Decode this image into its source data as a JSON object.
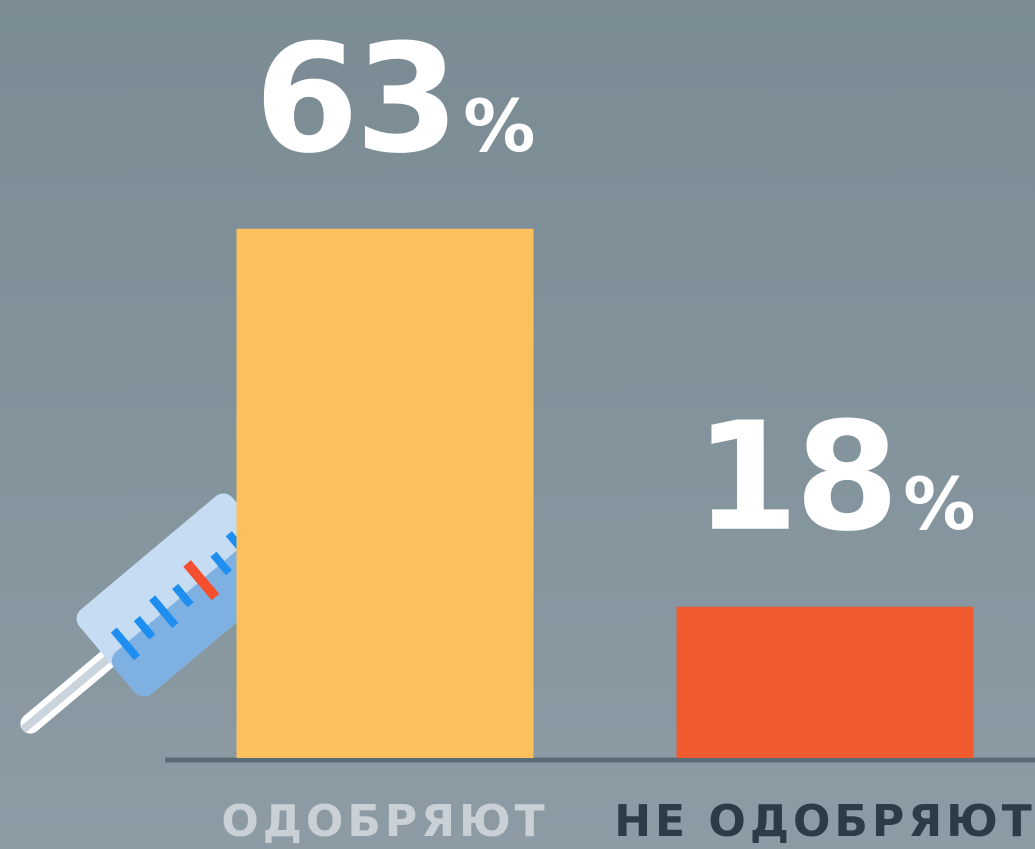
{
  "chart_data": {
    "type": "bar",
    "categories": [
      "ОДОБРЯЮТ",
      "НЕ ОДОБРЯЮТ"
    ],
    "values": [
      63,
      18
    ],
    "value_labels": [
      "63%",
      "18%"
    ],
    "colors": [
      "#fcc05c",
      "#ef5b2f"
    ],
    "ylim": [
      0,
      75
    ]
  }
}
